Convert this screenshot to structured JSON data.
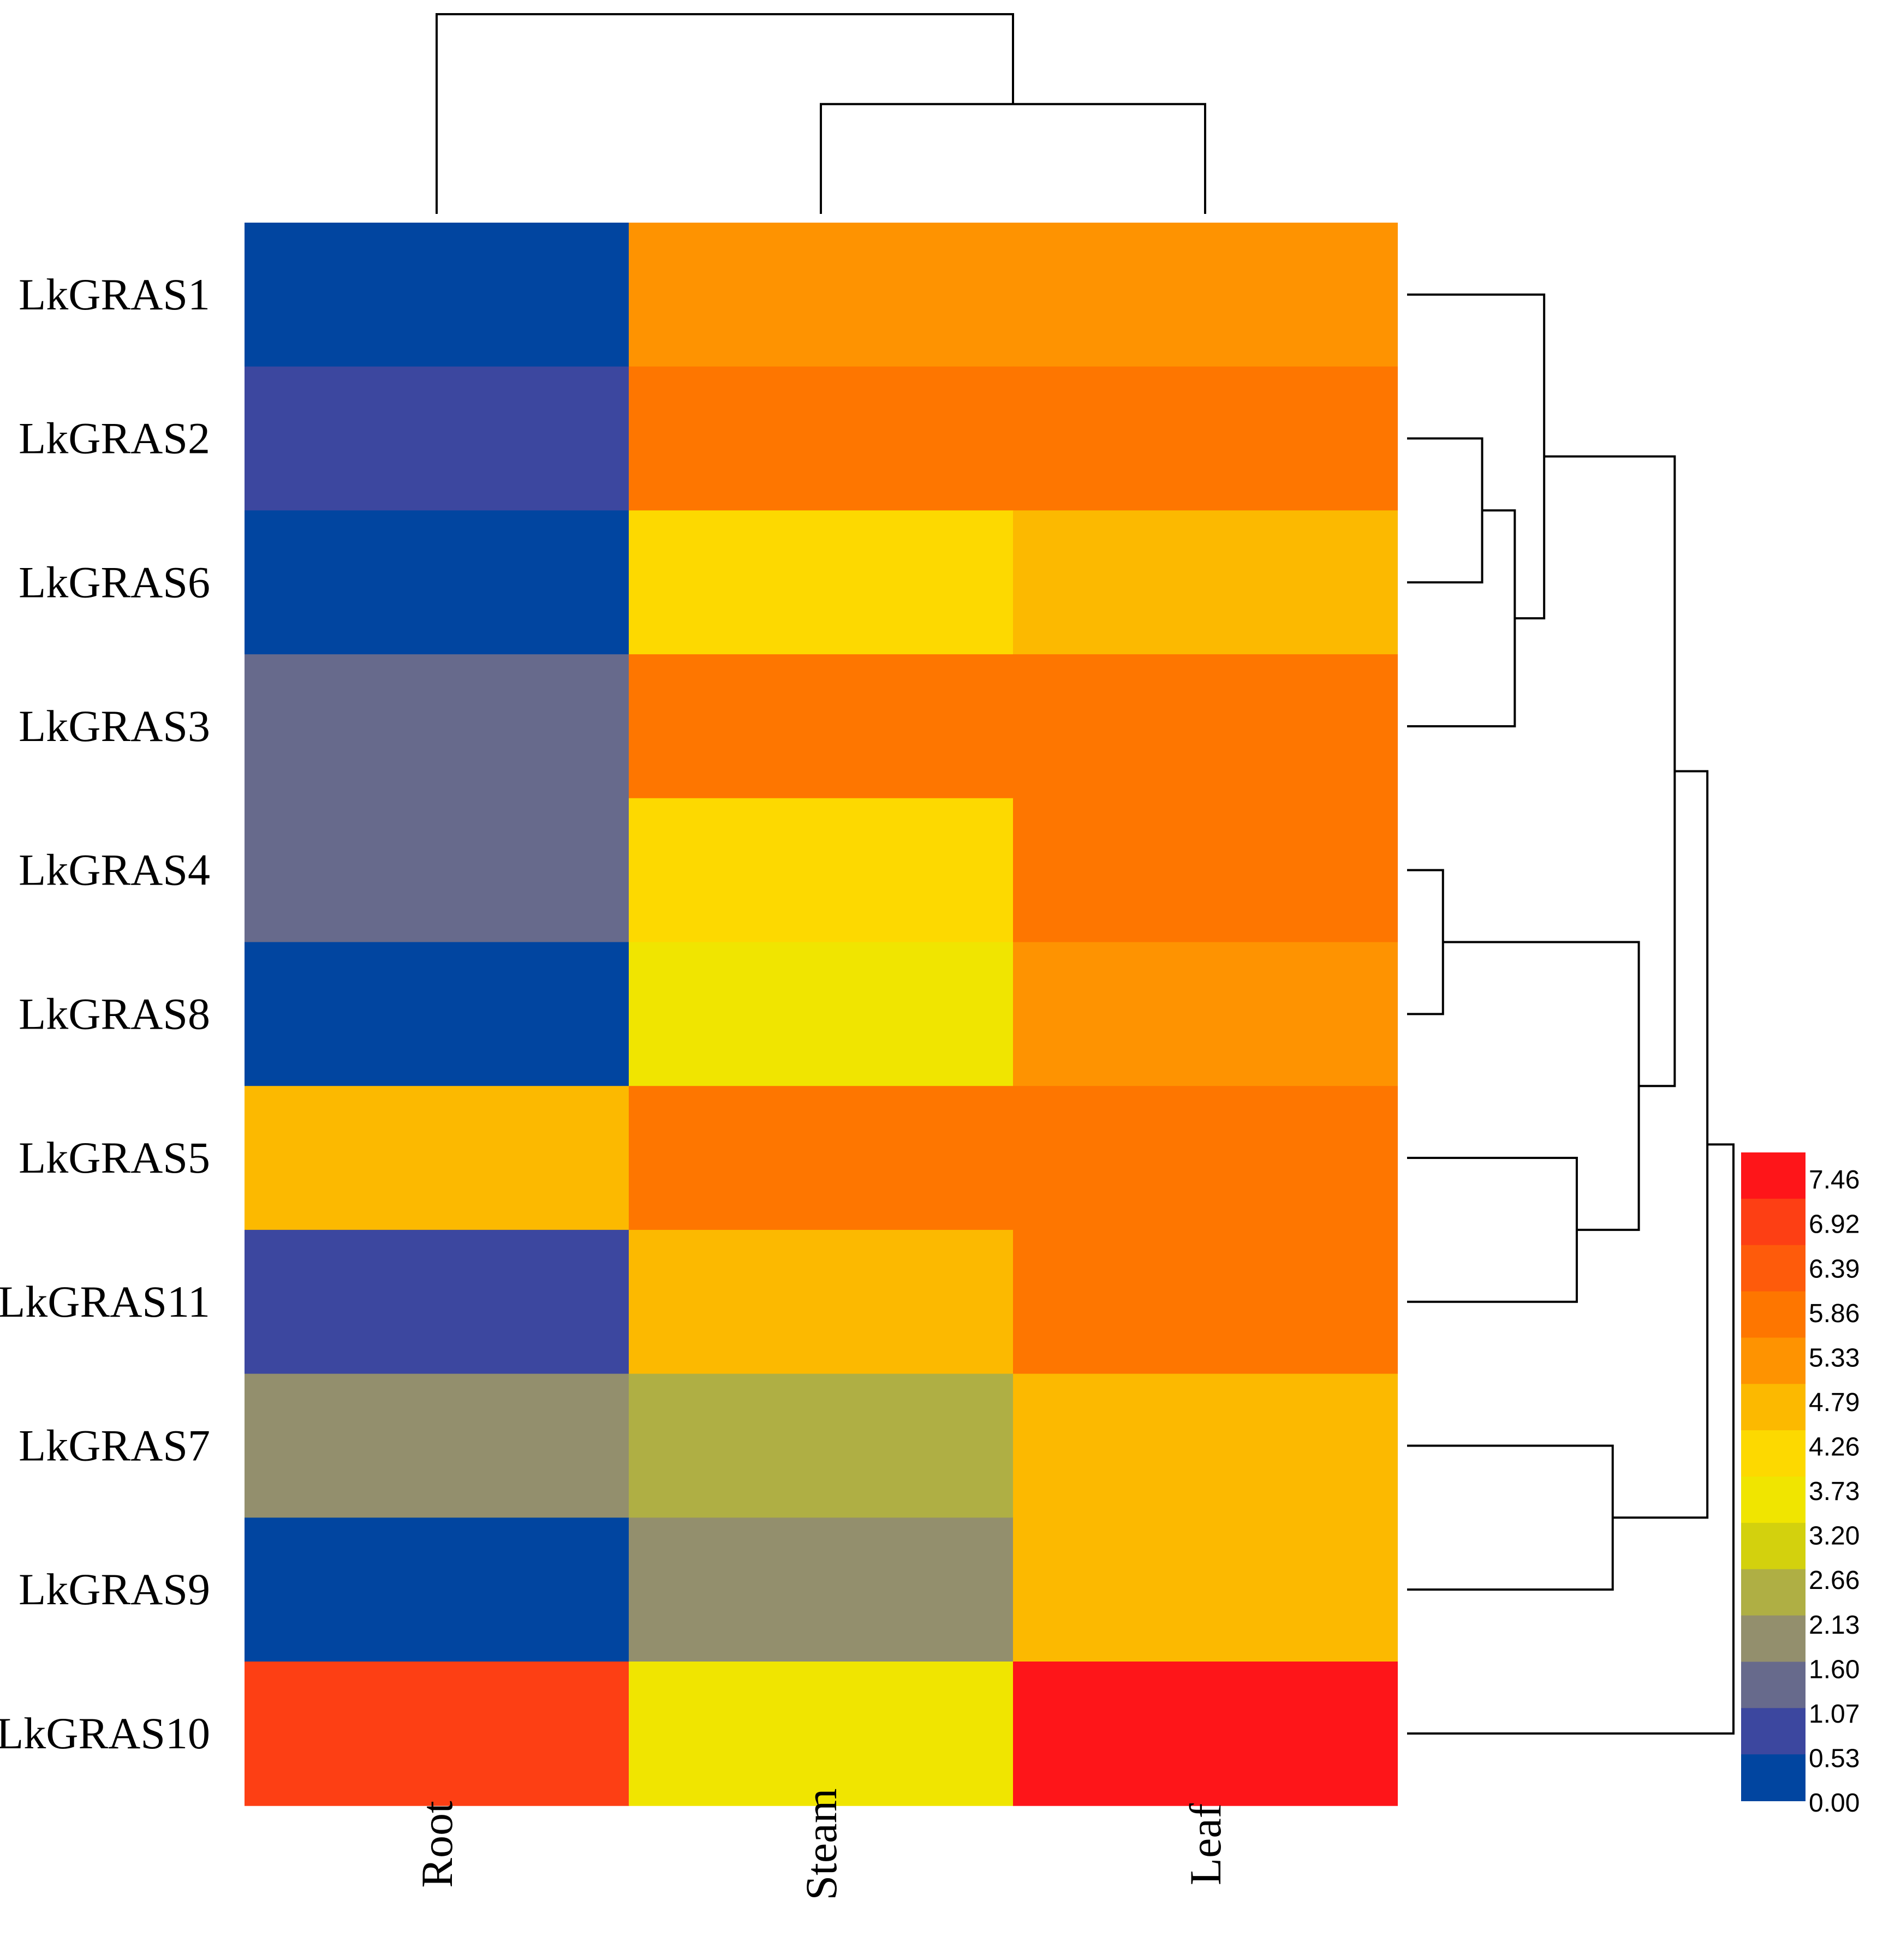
{
  "chart_data": {
    "type": "heatmap",
    "title": "",
    "columns": [
      "Root",
      "Steam",
      "Leaf"
    ],
    "rows": [
      "LkGRAS1",
      "LkGRAS2",
      "LkGRAS6",
      "LkGRAS3",
      "LkGRAS4",
      "LkGRAS8",
      "LkGRAS5",
      "LkGRAS11",
      "LkGRAS7",
      "LkGRAS9",
      "LkGRAS10"
    ],
    "values": [
      [
        0.3,
        5.2,
        5.2
      ],
      [
        0.8,
        5.7,
        5.7
      ],
      [
        0.3,
        4.0,
        4.6
      ],
      [
        1.4,
        5.7,
        5.7
      ],
      [
        1.4,
        4.0,
        5.7
      ],
      [
        0.3,
        3.5,
        5.2
      ],
      [
        4.6,
        5.7,
        5.7
      ],
      [
        0.8,
        4.6,
        5.7
      ],
      [
        1.9,
        2.5,
        4.6
      ],
      [
        0.3,
        1.9,
        4.6
      ],
      [
        6.8,
        3.5,
        7.3
      ]
    ],
    "color_scale": {
      "ticks": [
        "7.46",
        "6.92",
        "6.39",
        "5.86",
        "5.33",
        "4.79",
        "4.26",
        "3.73",
        "3.20",
        "2.66",
        "2.13",
        "1.60",
        "1.07",
        "0.53",
        "0.00"
      ],
      "bins": [
        {
          "min": 0.0,
          "max": 0.53,
          "color": "#0145A0"
        },
        {
          "min": 0.53,
          "max": 1.07,
          "color": "#3C479F"
        },
        {
          "min": 1.07,
          "max": 1.6,
          "color": "#676A8C"
        },
        {
          "min": 1.6,
          "max": 2.13,
          "color": "#938F6D"
        },
        {
          "min": 2.13,
          "max": 2.66,
          "color": "#AFAF44"
        },
        {
          "min": 2.66,
          "max": 3.2,
          "color": "#D3D10D"
        },
        {
          "min": 3.2,
          "max": 3.73,
          "color": "#F0E500"
        },
        {
          "min": 3.73,
          "max": 4.26,
          "color": "#FDD900"
        },
        {
          "min": 4.26,
          "max": 4.79,
          "color": "#FCB900"
        },
        {
          "min": 4.79,
          "max": 5.33,
          "color": "#FE9301"
        },
        {
          "min": 5.33,
          "max": 5.86,
          "color": "#FE7600"
        },
        {
          "min": 5.86,
          "max": 6.39,
          "color": "#FE5B0B"
        },
        {
          "min": 6.39,
          "max": 6.92,
          "color": "#FD3F14"
        },
        {
          "min": 6.92,
          "max": 7.46,
          "color": "#FE1519"
        }
      ]
    },
    "column_dendrogram": {
      "order": [
        "Root",
        "Steam",
        "Leaf"
      ],
      "merges": [
        {
          "children": [
            "Steam",
            "Leaf"
          ],
          "height": 0.55
        },
        {
          "children": [
            "Root",
            "Steam+Leaf"
          ],
          "height": 1.0
        }
      ]
    },
    "row_dendrogram": {
      "merges": [
        {
          "children": [
            "LkGRAS2",
            "LkGRAS6"
          ],
          "height": 0.23
        },
        {
          "children": [
            "LkGRAS2+LkGRAS6",
            "LkGRAS3"
          ],
          "height": 0.33
        },
        {
          "children": [
            "LkGRAS1",
            "LkGRAS2+LkGRAS6+LkGRAS3"
          ],
          "height": 0.42
        },
        {
          "children": [
            "LkGRAS4",
            "LkGRAS8"
          ],
          "height": 0.11
        },
        {
          "children": [
            "LkGRAS5",
            "LkGRAS11"
          ],
          "height": 0.52
        },
        {
          "children": [
            "LkGRAS4+LkGRAS8",
            "LkGRAS5+LkGRAS11"
          ],
          "height": 0.71
        },
        {
          "children": [
            "LkGRAS1-3 cluster",
            "LkGRAS4-11 cluster"
          ],
          "height": 0.82
        },
        {
          "children": [
            "LkGRAS7",
            "LkGRAS9"
          ],
          "height": 0.63
        },
        {
          "children": [
            "LkGRAS1-11 cluster",
            "LkGRAS7+LkGRAS9"
          ],
          "height": 0.92
        },
        {
          "children": [
            "all",
            "LkGRAS10"
          ],
          "height": 1.0
        }
      ]
    }
  }
}
